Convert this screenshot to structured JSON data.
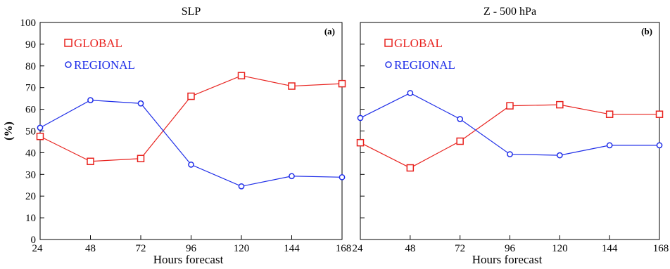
{
  "colors": {
    "global": "#e8231f",
    "regional": "#1f2ee8",
    "axis": "#000000"
  },
  "chart_data": [
    {
      "type": "line",
      "title": "SLP",
      "panel_label": "(a)",
      "xlabel": "Hours forecast",
      "ylabel": "(%)",
      "x": [
        24,
        48,
        72,
        96,
        120,
        144,
        168
      ],
      "xlim": [
        24,
        168
      ],
      "ylim": [
        0,
        100
      ],
      "yticks": [
        0,
        10,
        20,
        30,
        40,
        50,
        60,
        70,
        80,
        90,
        100
      ],
      "show_ytick_labels": true,
      "legend_position": "top-left",
      "series": [
        {
          "name": "GLOBAL",
          "marker": "square",
          "color": "#e8231f",
          "values": [
            47.5,
            36,
            37.3,
            66,
            75.5,
            70.7,
            71.8
          ]
        },
        {
          "name": "REGIONAL",
          "marker": "circle",
          "color": "#1f2ee8",
          "values": [
            51.5,
            64.2,
            62.7,
            34.5,
            24.5,
            29.2,
            28.7
          ]
        }
      ]
    },
    {
      "type": "line",
      "title": "Z - 500 hPa",
      "panel_label": "(b)",
      "xlabel": "Hours forecast",
      "ylabel": "",
      "x": [
        24,
        48,
        72,
        96,
        120,
        144,
        168
      ],
      "xlim": [
        24,
        168
      ],
      "ylim": [
        0,
        100
      ],
      "yticks": [
        0,
        10,
        20,
        30,
        40,
        50,
        60,
        70,
        80,
        90,
        100
      ],
      "show_ytick_labels": false,
      "legend_position": "top-left",
      "series": [
        {
          "name": "GLOBAL",
          "marker": "square",
          "color": "#e8231f",
          "values": [
            44.6,
            33,
            45.3,
            61.6,
            62.1,
            57.7,
            57.7
          ]
        },
        {
          "name": "REGIONAL",
          "marker": "circle",
          "color": "#1f2ee8",
          "values": [
            56,
            67.5,
            55.5,
            39.3,
            38.8,
            43.4,
            43.4
          ]
        }
      ]
    }
  ]
}
